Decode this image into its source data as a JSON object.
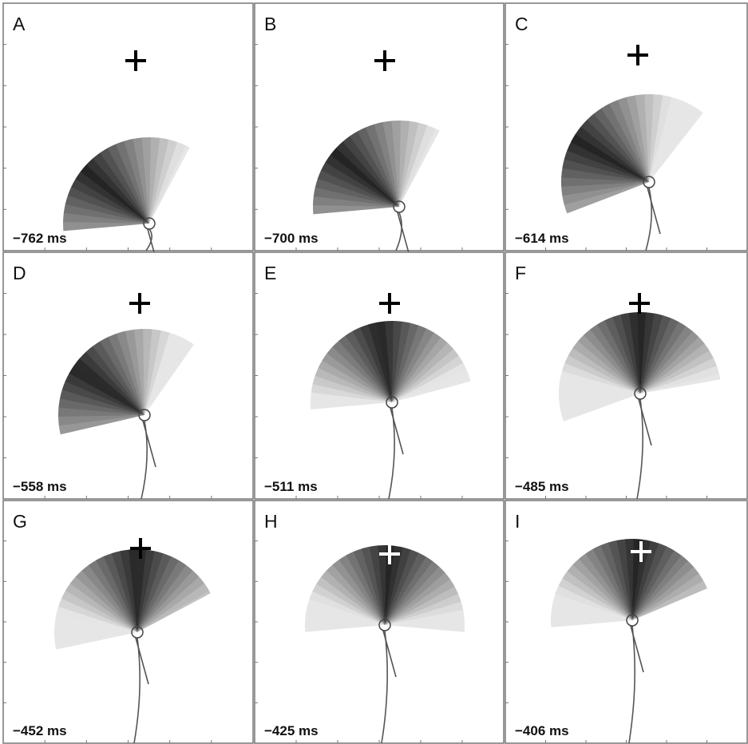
{
  "panels": [
    {
      "letter": "A",
      "time": "−762 ms"
    },
    {
      "letter": "B",
      "time": "−700 ms"
    },
    {
      "letter": "C",
      "time": "−614 ms"
    },
    {
      "letter": "D",
      "time": "−558 ms"
    },
    {
      "letter": "E",
      "time": "−511 ms"
    },
    {
      "letter": "F",
      "time": "−485 ms"
    },
    {
      "letter": "G",
      "time": "−452 ms"
    },
    {
      "letter": "H",
      "time": "−425 ms"
    },
    {
      "letter": "I",
      "time": "−406 ms"
    }
  ]
}
